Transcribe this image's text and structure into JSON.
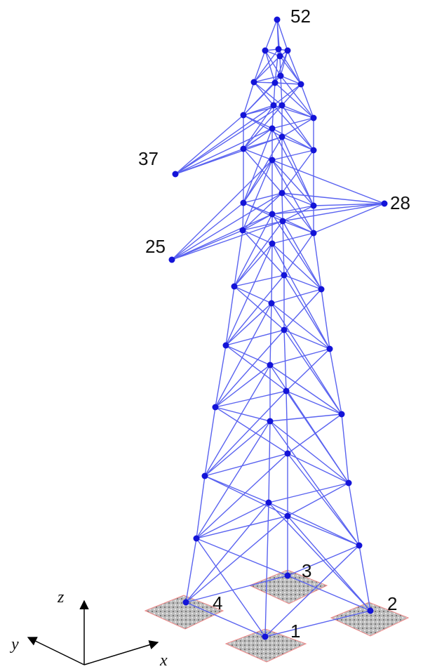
{
  "node_labels": [
    "52",
    "37",
    "28",
    "25",
    "1",
    "2",
    "3",
    "4"
  ],
  "axis_labels": [
    "z",
    "y",
    "x"
  ]
}
